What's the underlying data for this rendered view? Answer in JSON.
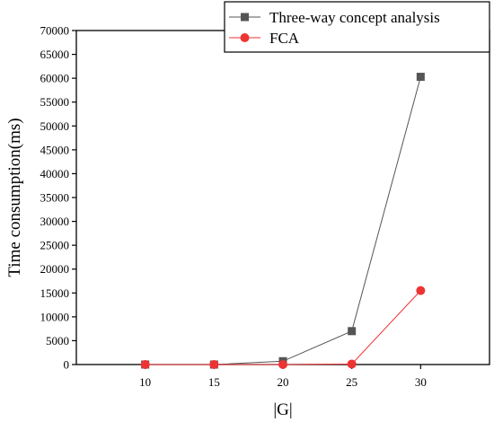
{
  "chart_data": {
    "type": "line",
    "xlabel": "|G|",
    "ylabel": "Time consumption(ms)",
    "x": [
      10,
      15,
      20,
      25,
      30
    ],
    "xlim": [
      5,
      35
    ],
    "ylim": [
      0,
      70000
    ],
    "x_ticks": [
      "10",
      "15",
      "20",
      "25",
      "30"
    ],
    "y_ticks": [
      "0",
      "5000",
      "10000",
      "15000",
      "20000",
      "25000",
      "30000",
      "35000",
      "40000",
      "45000",
      "50000",
      "55000",
      "60000",
      "65000",
      "70000"
    ],
    "grid": false,
    "legend_position": "top-right",
    "series": [
      {
        "name": "Three-way concept analysis",
        "marker": "square",
        "color": "#555555",
        "values": [
          0,
          0,
          700,
          7000,
          60300
        ]
      },
      {
        "name": "FCA",
        "marker": "circle",
        "color": "#ee3333",
        "values": [
          0,
          0,
          0,
          100,
          15500
        ]
      }
    ]
  }
}
